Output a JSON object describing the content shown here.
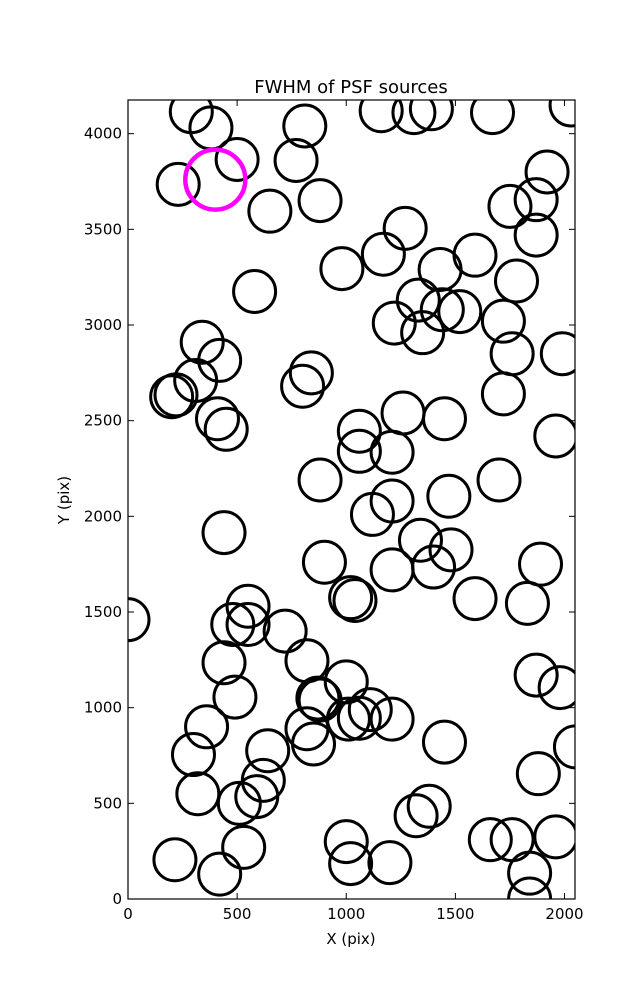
{
  "chart_data": {
    "type": "scatter",
    "title": "FWHM of PSF sources",
    "xlabel": "X (pix)",
    "ylabel": "Y (pix)",
    "xlim": [
      0,
      2048
    ],
    "ylim": [
      0,
      4176
    ],
    "xticks": [
      0,
      500,
      1000,
      1500,
      2000
    ],
    "yticks": [
      0,
      500,
      1000,
      1500,
      2000,
      2500,
      3000,
      3500,
      4000
    ],
    "grid": false,
    "marker": "open-circle",
    "series": [
      {
        "color": "#000000",
        "points": [
          [
            290,
            4115
          ],
          [
            380,
            4030
          ],
          [
            500,
            3865
          ],
          [
            230,
            3735
          ],
          [
            770,
            3860
          ],
          [
            810,
            4040
          ],
          [
            1160,
            4120
          ],
          [
            1310,
            4110
          ],
          [
            1390,
            4130
          ],
          [
            1670,
            4110
          ],
          [
            2030,
            4150
          ],
          [
            650,
            3595
          ],
          [
            880,
            3650
          ],
          [
            1270,
            3505
          ],
          [
            1170,
            3370
          ],
          [
            980,
            3295
          ],
          [
            1430,
            3290
          ],
          [
            1590,
            3365
          ],
          [
            1780,
            3230
          ],
          [
            1750,
            3620
          ],
          [
            1870,
            3655
          ],
          [
            1870,
            3470
          ],
          [
            1920,
            3800
          ],
          [
            580,
            3175
          ],
          [
            340,
            2910
          ],
          [
            420,
            2815
          ],
          [
            310,
            2710
          ],
          [
            220,
            2635
          ],
          [
            200,
            2625
          ],
          [
            410,
            2510
          ],
          [
            450,
            2455
          ],
          [
            800,
            2680
          ],
          [
            840,
            2750
          ],
          [
            1330,
            3130
          ],
          [
            1440,
            3080
          ],
          [
            1520,
            3070
          ],
          [
            1220,
            3010
          ],
          [
            1350,
            2960
          ],
          [
            1720,
            3020
          ],
          [
            1760,
            2850
          ],
          [
            1990,
            2850
          ],
          [
            1720,
            2640
          ],
          [
            1960,
            2420
          ],
          [
            1260,
            2540
          ],
          [
            1450,
            2510
          ],
          [
            1060,
            2445
          ],
          [
            1060,
            2340
          ],
          [
            1210,
            2335
          ],
          [
            880,
            2190
          ],
          [
            1210,
            2080
          ],
          [
            1120,
            2010
          ],
          [
            1470,
            2105
          ],
          [
            1700,
            2190
          ],
          [
            440,
            1915
          ],
          [
            900,
            1760
          ],
          [
            1340,
            1875
          ],
          [
            1480,
            1825
          ],
          [
            1400,
            1735
          ],
          [
            1210,
            1720
          ],
          [
            1890,
            1750
          ],
          [
            0,
            1460
          ],
          [
            550,
            1530
          ],
          [
            480,
            1435
          ],
          [
            550,
            1435
          ],
          [
            720,
            1400
          ],
          [
            1020,
            1575
          ],
          [
            1040,
            1560
          ],
          [
            1590,
            1570
          ],
          [
            1830,
            1545
          ],
          [
            440,
            1235
          ],
          [
            820,
            1245
          ],
          [
            490,
            1055
          ],
          [
            870,
            1050
          ],
          [
            880,
            1040
          ],
          [
            1000,
            1135
          ],
          [
            1110,
            990
          ],
          [
            1870,
            1170
          ],
          [
            1980,
            1105
          ],
          [
            360,
            900
          ],
          [
            300,
            755
          ],
          [
            640,
            775
          ],
          [
            820,
            890
          ],
          [
            850,
            810
          ],
          [
            1010,
            940
          ],
          [
            1060,
            945
          ],
          [
            1210,
            940
          ],
          [
            1450,
            820
          ],
          [
            2050,
            795
          ],
          [
            320,
            550
          ],
          [
            620,
            620
          ],
          [
            510,
            500
          ],
          [
            590,
            535
          ],
          [
            1320,
            435
          ],
          [
            1380,
            485
          ],
          [
            1880,
            655
          ],
          [
            1000,
            300
          ],
          [
            530,
            270
          ],
          [
            1020,
            185
          ],
          [
            1200,
            190
          ],
          [
            215,
            205
          ],
          [
            420,
            130
          ],
          [
            1660,
            310
          ],
          [
            1760,
            310
          ],
          [
            1840,
            135
          ],
          [
            1960,
            325
          ],
          [
            1840,
            0
          ]
        ]
      },
      {
        "color": "#ff00ff",
        "points": [
          [
            400,
            3760
          ]
        ]
      }
    ]
  }
}
